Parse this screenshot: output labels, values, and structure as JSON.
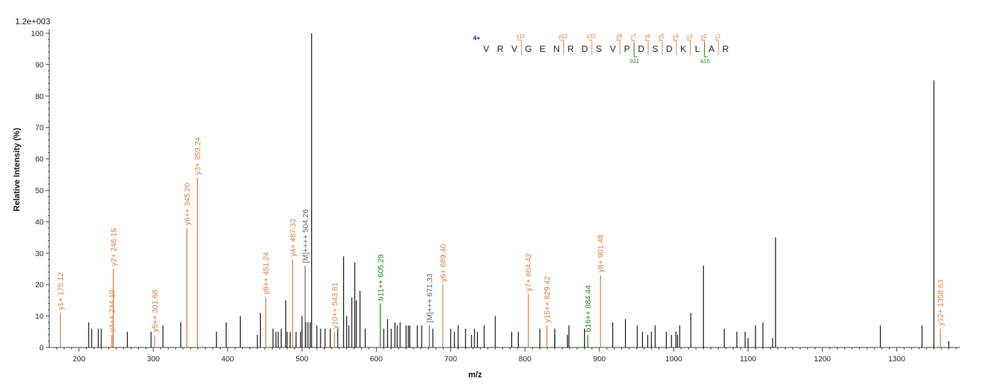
{
  "chart_data": {
    "type": "bar",
    "scale_label": "1.2e+003",
    "xlabel": "m/z",
    "ylabel": "Relative   Intensity (%)",
    "xlim": [
      160,
      1385
    ],
    "ylim": [
      0,
      100
    ],
    "x_ticks": [
      200,
      300,
      400,
      500,
      600,
      700,
      800,
      900,
      1000,
      1100,
      1200,
      1300
    ],
    "y_ticks": [
      0,
      10,
      20,
      30,
      40,
      50,
      60,
      70,
      80,
      90,
      100
    ],
    "colors": {
      "y_ion": "#e07b39",
      "b_ion": "#1a8a1a",
      "precursor": "#666666",
      "unassigned": "#000000",
      "charge": "#1a1a99"
    },
    "annotated_peaks": [
      {
        "mz": 175.12,
        "intensity": 11,
        "label": "y1+ 175.12",
        "ion": "y"
      },
      {
        "mz": 244.1,
        "intensity": 4,
        "label": "y4++ 244.10",
        "ion": "y"
      },
      {
        "mz": 246.16,
        "intensity": 25,
        "label": "y2+ 246.16",
        "ion": "y"
      },
      {
        "mz": 301.68,
        "intensity": 4,
        "label": "y5++ 301.68",
        "ion": "y"
      },
      {
        "mz": 345.2,
        "intensity": 38,
        "label": "y6++ 345.20",
        "ion": "y"
      },
      {
        "mz": 359.24,
        "intensity": 54,
        "label": "y3+ 359.24",
        "ion": "y"
      },
      {
        "mz": 451.24,
        "intensity": 16,
        "label": "y8++ 451.24",
        "ion": "y"
      },
      {
        "mz": 487.33,
        "intensity": 28,
        "label": "y4+ 487.33",
        "ion": "y"
      },
      {
        "mz": 504.26,
        "intensity": 26,
        "label": "[M]++++ 504.26",
        "ion": "precursor"
      },
      {
        "mz": 543.81,
        "intensity": 5,
        "label": "y10++ 543.81",
        "ion": "y"
      },
      {
        "mz": 605.29,
        "intensity": 14,
        "label": "b11++ 605.29",
        "ion": "b"
      },
      {
        "mz": 671.33,
        "intensity": 7,
        "label": "[M]+++ 671.33",
        "ion": "precursor"
      },
      {
        "mz": 689.4,
        "intensity": 20,
        "label": "y6+ 689.40",
        "ion": "y"
      },
      {
        "mz": 804.42,
        "intensity": 17,
        "label": "y7+ 804.42",
        "ion": "y"
      },
      {
        "mz": 829.42,
        "intensity": 7,
        "label": "y15++ 829.42",
        "ion": "y"
      },
      {
        "mz": 884.44,
        "intensity": 4,
        "label": "b16++ 884.44",
        "ion": "b"
      },
      {
        "mz": 901.48,
        "intensity": 23,
        "label": "y8+ 901.48",
        "ion": "y"
      },
      {
        "mz": 1358.63,
        "intensity": 6,
        "label": "y12+ 1358.63",
        "ion": "y"
      }
    ],
    "unassigned_peaks": [
      [
        513,
        100
      ],
      [
        1350,
        85
      ],
      [
        1137,
        35
      ],
      [
        1040,
        26
      ],
      [
        556,
        29
      ],
      [
        571,
        27
      ],
      [
        578,
        18
      ],
      [
        567,
        16
      ],
      [
        573,
        15
      ],
      [
        478,
        15
      ],
      [
        1023,
        11
      ],
      [
        760,
        10
      ],
      [
        417,
        10
      ],
      [
        444,
        11
      ],
      [
        500,
        10
      ],
      [
        505,
        8
      ],
      [
        508,
        8
      ],
      [
        511,
        8
      ],
      [
        615,
        9
      ],
      [
        625,
        8
      ],
      [
        632,
        8
      ],
      [
        640,
        7
      ],
      [
        643,
        7
      ],
      [
        655,
        7
      ],
      [
        398,
        8
      ],
      [
        337,
        8
      ],
      [
        313,
        7
      ],
      [
        213,
        8
      ],
      [
        217,
        6
      ],
      [
        226,
        6
      ],
      [
        230,
        6
      ],
      [
        246,
        5
      ],
      [
        265,
        5
      ],
      [
        297,
        5
      ],
      [
        385,
        5
      ],
      [
        440,
        4
      ],
      [
        461,
        6
      ],
      [
        465,
        5
      ],
      [
        468,
        5
      ],
      [
        472,
        6
      ],
      [
        480,
        5
      ],
      [
        484,
        5
      ],
      [
        492,
        5
      ],
      [
        498,
        5
      ],
      [
        520,
        7
      ],
      [
        525,
        6
      ],
      [
        531,
        6
      ],
      [
        538,
        6
      ],
      [
        548,
        6
      ],
      [
        560,
        10
      ],
      [
        563,
        7
      ],
      [
        585,
        6
      ],
      [
        610,
        6
      ],
      [
        620,
        6
      ],
      [
        628,
        7
      ],
      [
        645,
        7
      ],
      [
        661,
        7
      ],
      [
        676,
        6
      ],
      [
        700,
        6
      ],
      [
        705,
        5
      ],
      [
        710,
        7
      ],
      [
        720,
        6
      ],
      [
        732,
        6
      ],
      [
        736,
        5
      ],
      [
        745,
        7
      ],
      [
        782,
        5
      ],
      [
        791,
        5
      ],
      [
        820,
        6
      ],
      [
        840,
        6
      ],
      [
        859,
        7
      ],
      [
        880,
        6
      ],
      [
        918,
        8
      ],
      [
        935,
        9
      ],
      [
        951,
        7
      ],
      [
        958,
        5
      ],
      [
        975,
        7
      ],
      [
        990,
        5
      ],
      [
        997,
        4
      ],
      [
        1008,
        7
      ],
      [
        1068,
        6
      ],
      [
        1085,
        5
      ],
      [
        1096,
        5
      ],
      [
        1100,
        3
      ],
      [
        1110,
        7
      ],
      [
        1120,
        8
      ],
      [
        1278,
        7
      ],
      [
        1334,
        7
      ],
      [
        1370,
        2
      ],
      [
        965,
        4
      ],
      [
        970,
        5
      ],
      [
        1003,
        5
      ],
      [
        1005,
        4
      ],
      [
        728,
        4
      ],
      [
        840,
        4
      ],
      [
        857,
        4
      ],
      [
        1133,
        3
      ]
    ],
    "sequence": {
      "charge": "4+",
      "residues": [
        "V",
        "R",
        "V",
        "G",
        "E",
        "N",
        "R",
        "D",
        "S",
        "V",
        "P",
        "D",
        "S",
        "D",
        "K",
        "L",
        "A",
        "R"
      ],
      "y_fragments": [
        {
          "after_index": 2,
          "label": "y15"
        },
        {
          "after_index": 5,
          "label": "y12"
        },
        {
          "after_index": 7,
          "label": "y10"
        },
        {
          "after_index": 9,
          "label": "y8"
        },
        {
          "after_index": 10,
          "label": "y7"
        },
        {
          "after_index": 11,
          "label": "y6"
        },
        {
          "after_index": 12,
          "label": "y5"
        },
        {
          "after_index": 13,
          "label": "y4"
        },
        {
          "after_index": 14,
          "label": "y3"
        },
        {
          "after_index": 15,
          "label": "y2"
        },
        {
          "after_index": 16,
          "label": "y1"
        }
      ],
      "b_fragments": [
        {
          "after_index": 10,
          "label": "b11"
        },
        {
          "after_index": 15,
          "label": "b16"
        }
      ]
    }
  }
}
